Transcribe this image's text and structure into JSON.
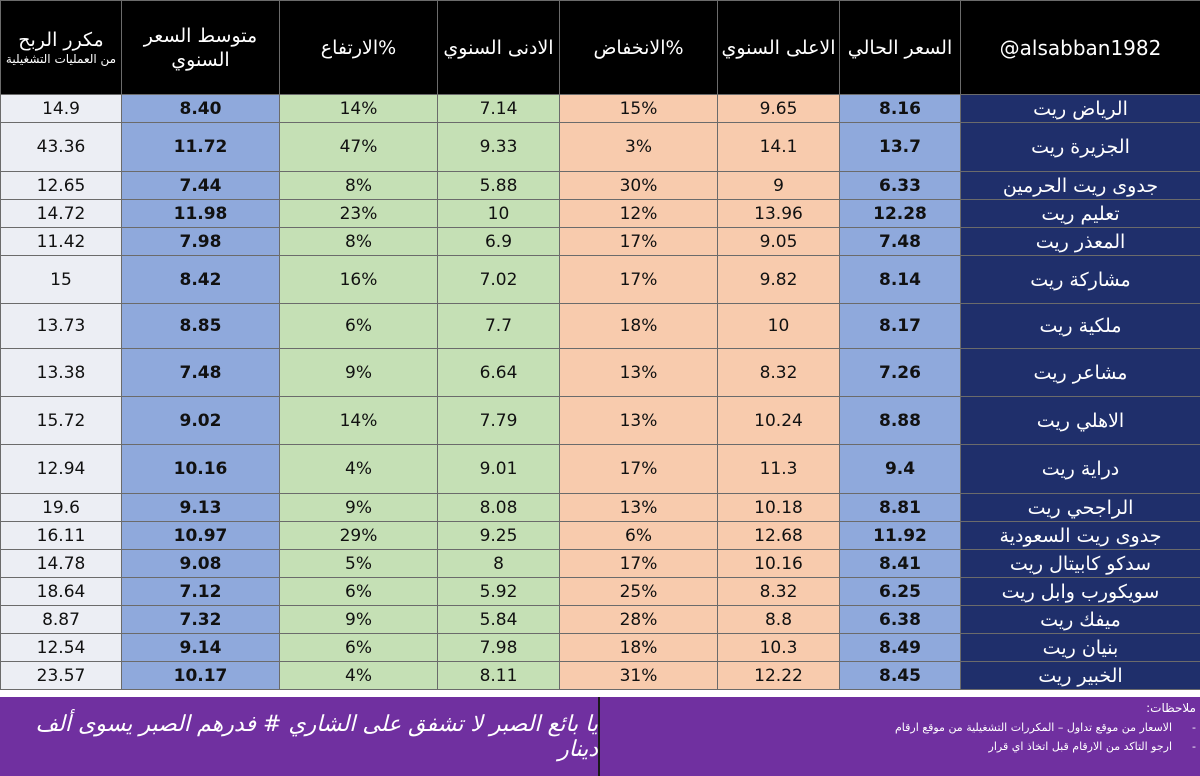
{
  "headers": {
    "name": "@alsabban1982",
    "current": "السعر الحالي",
    "high": "الاعلى السنوي",
    "down_pct": "الانخفاض%",
    "low": "الادنى السنوي",
    "up_pct": "الارتفاع%",
    "avg_line1": "متوسط السعر",
    "avg_line2": "السنوي",
    "profit_line1": "مكرر الربح",
    "profit_line2": "من العمليات التشغيلية"
  },
  "rows": [
    {
      "name": "الرياض ريت",
      "current": "8.16",
      "high": "9.65",
      "down_pct": "15%",
      "low": "7.14",
      "up_pct": "14%",
      "avg": "8.40",
      "profit": "14.9"
    },
    {
      "name": "الجزيرة ريت",
      "current": "13.7",
      "high": "14.1",
      "down_pct": "3%",
      "low": "9.33",
      "up_pct": "47%",
      "avg": "11.72",
      "profit": "43.36"
    },
    {
      "name": "جدوى ريت الحرمين",
      "current": "6.33",
      "high": "9",
      "down_pct": "30%",
      "low": "5.88",
      "up_pct": "8%",
      "avg": "7.44",
      "profit": "12.65"
    },
    {
      "name": "تعليم ريت",
      "current": "12.28",
      "high": "13.96",
      "down_pct": "12%",
      "low": "10",
      "up_pct": "23%",
      "avg": "11.98",
      "profit": "14.72"
    },
    {
      "name": "المعذر ريت",
      "current": "7.48",
      "high": "9.05",
      "down_pct": "17%",
      "low": "6.9",
      "up_pct": "8%",
      "avg": "7.98",
      "profit": "11.42"
    },
    {
      "name": "مشاركة ريت",
      "current": "8.14",
      "high": "9.82",
      "down_pct": "17%",
      "low": "7.02",
      "up_pct": "16%",
      "avg": "8.42",
      "profit": "15"
    },
    {
      "name": "ملكية ريت",
      "current": "8.17",
      "high": "10",
      "down_pct": "18%",
      "low": "7.7",
      "up_pct": "6%",
      "avg": "8.85",
      "profit": "13.73"
    },
    {
      "name": "مشاعر ريت",
      "current": "7.26",
      "high": "8.32",
      "down_pct": "13%",
      "low": "6.64",
      "up_pct": "9%",
      "avg": "7.48",
      "profit": "13.38"
    },
    {
      "name": "الاهلي ريت",
      "current": "8.88",
      "high": "10.24",
      "down_pct": "13%",
      "low": "7.79",
      "up_pct": "14%",
      "avg": "9.02",
      "profit": "15.72"
    },
    {
      "name": "دراية ريت",
      "current": "9.4",
      "high": "11.3",
      "down_pct": "17%",
      "low": "9.01",
      "up_pct": "4%",
      "avg": "10.16",
      "profit": "12.94"
    },
    {
      "name": "الراجحي ريت",
      "current": "8.81",
      "high": "10.18",
      "down_pct": "13%",
      "low": "8.08",
      "up_pct": "9%",
      "avg": "9.13",
      "profit": "19.6"
    },
    {
      "name": "جدوى ريت السعودية",
      "current": "11.92",
      "high": "12.68",
      "down_pct": "6%",
      "low": "9.25",
      "up_pct": "29%",
      "avg": "10.97",
      "profit": "16.11"
    },
    {
      "name": "سدكو كابيتال ريت",
      "current": "8.41",
      "high": "10.16",
      "down_pct": "17%",
      "low": "8",
      "up_pct": "5%",
      "avg": "9.08",
      "profit": "14.78"
    },
    {
      "name": "سويكورب وابل ريت",
      "current": "6.25",
      "high": "8.32",
      "down_pct": "25%",
      "low": "5.92",
      "up_pct": "6%",
      "avg": "7.12",
      "profit": "18.64"
    },
    {
      "name": "ميفك ريت",
      "current": "6.38",
      "high": "8.8",
      "down_pct": "28%",
      "low": "5.84",
      "up_pct": "9%",
      "avg": "7.32",
      "profit": "8.87"
    },
    {
      "name": "بنيان ريت",
      "current": "8.49",
      "high": "10.3",
      "down_pct": "18%",
      "low": "7.98",
      "up_pct": "6%",
      "avg": "9.14",
      "profit": "12.54"
    },
    {
      "name": "الخبير ريت",
      "current": "8.45",
      "high": "12.22",
      "down_pct": "31%",
      "low": "8.11",
      "up_pct": "4%",
      "avg": "10.17",
      "profit": "23.57"
    }
  ],
  "footer": {
    "slogan": "يا بائع الصبر لا تشفق على الشاري # فدرهم الصبر يسوى ألف دينار",
    "notes_title": "ملاحظات:",
    "notes": [
      "الاسعار من موقع تداول – المكررات التشغيلية من موقع ارقام",
      "ارجو التاكد من الارقام قبل اتخاذ اي قرار"
    ]
  },
  "colors": {
    "header_bg": "#000000",
    "name_bg": "#1f2f6b",
    "blue_cells": "#8fa9dc",
    "green_cells": "#c5e0b5",
    "orange_cells": "#f8cbad",
    "profit_cells": "#eceef4",
    "footer_bg": "#7030a0"
  }
}
